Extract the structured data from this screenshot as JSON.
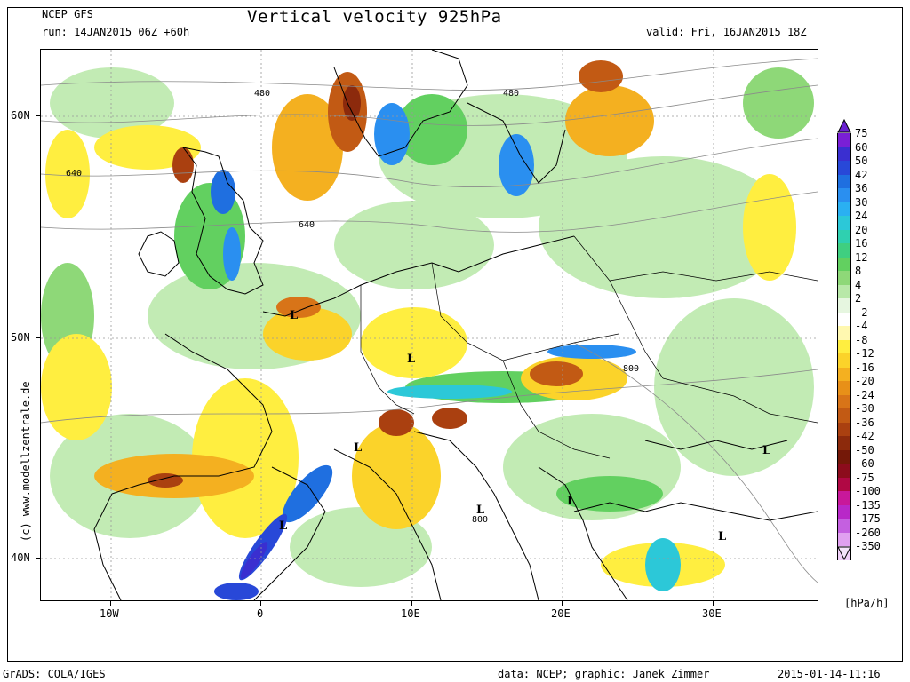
{
  "header": {
    "model": "NCEP GFS",
    "run": "run: 14JAN2015 06Z +60h",
    "title": "Vertical velocity 925hPa",
    "valid": "valid: Fri, 16JAN2015 18Z"
  },
  "axes": {
    "lat_labels": [
      "60N",
      "50N",
      "40N"
    ],
    "lon_labels": [
      "10W",
      "0",
      "10E",
      "20E",
      "30E"
    ]
  },
  "colorbar": {
    "unit": "[hPa/h]",
    "levels": [
      "75",
      "60",
      "50",
      "42",
      "36",
      "30",
      "24",
      "20",
      "16",
      "12",
      "8",
      "4",
      "2",
      "-2",
      "-4",
      "-8",
      "-12",
      "-16",
      "-20",
      "-24",
      "-30",
      "-36",
      "-42",
      "-50",
      "-60",
      "-75",
      "-100",
      "-135",
      "-175",
      "-260",
      "-350"
    ],
    "colors": [
      "#7a1fd6",
      "#3a2fd0",
      "#2848d8",
      "#1f6fe0",
      "#2a8ff0",
      "#2ab0f2",
      "#2cc8d8",
      "#2fd0b0",
      "#3fcf80",
      "#62d060",
      "#8ed878",
      "#b8e8a8",
      "#e6f6e0",
      "#ffffff",
      "#fff8b0",
      "#ffee40",
      "#fbd32a",
      "#f4b020",
      "#e89018",
      "#d87418",
      "#c25a14",
      "#aa4010",
      "#8c2a0c",
      "#741808",
      "#8c0c1c",
      "#b00844",
      "#c8189a",
      "#b828c8",
      "#c460e0",
      "#e0a0f0",
      "#f0d0f8"
    ],
    "top_arrow_color": "#6a22d0",
    "bottom_arrow_color": "#f4e4fa"
  },
  "map_labels": {
    "contours": [
      "480",
      "480",
      "640",
      "640",
      "800",
      "800"
    ],
    "lows": [
      "L",
      "L",
      "L",
      "L",
      "L",
      "L",
      "L",
      "L"
    ]
  },
  "watermark": "(c) www.modellzentrale.de",
  "footer": {
    "left": "GrADS: COLA/IGES",
    "center": "data: NCEP; graphic: Janek Zimmer",
    "right": "2015-01-14-11:16"
  }
}
